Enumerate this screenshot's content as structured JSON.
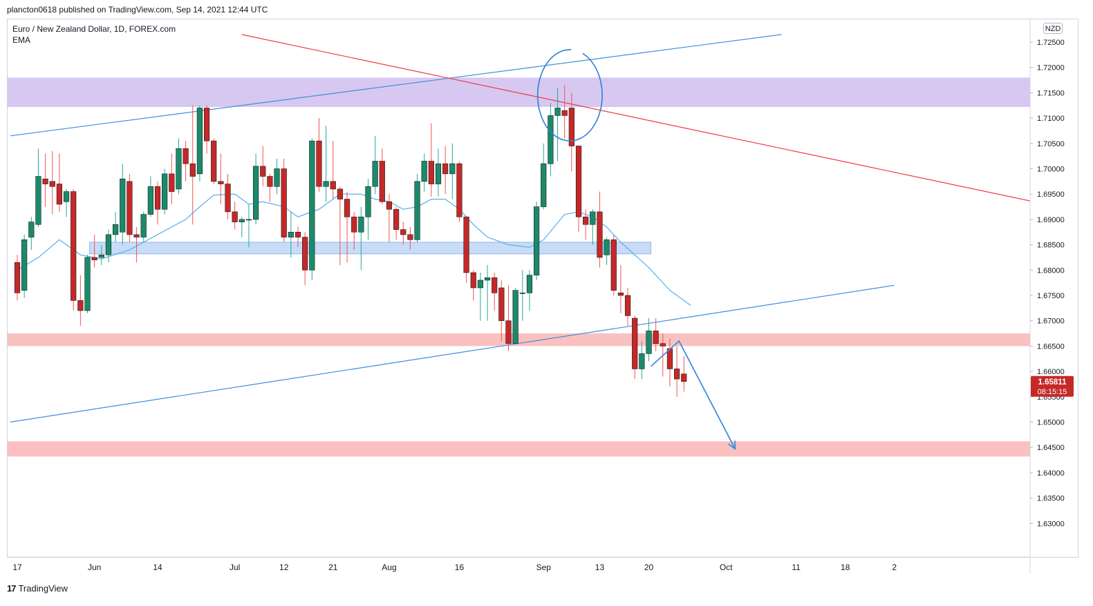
{
  "publisher_line": "plancton0618 published on TradingView.com, Sep 14, 2021 12:44 UTC",
  "legend": {
    "symbol": "Euro / New Zealand Dollar, 1D, FOREX.com",
    "indicator": "EMA"
  },
  "currency_button": "NZD",
  "brand": {
    "logo": "17",
    "name": "TradingView"
  },
  "price_tag": {
    "price": "1.65811",
    "countdown": "08:15:15"
  },
  "colors": {
    "up": "#26a69a",
    "down": "#ef5350",
    "up_body": "#1b8a6b",
    "down_body": "#c62828",
    "ema": "#4aa8e8",
    "trend_blue": "#3e8de0",
    "trend_red": "#f23645",
    "zone_purple": "#d6c8f0",
    "zone_blue": "#c8dcf8",
    "zone_pink": "#fbc0c0"
  },
  "chart_data": {
    "type": "candlestick",
    "y_axis": {
      "range": [
        1.6235,
        1.7295
      ],
      "ticks": [
        "1.72500",
        "1.72000",
        "1.71500",
        "1.71000",
        "1.70500",
        "1.70000",
        "1.69500",
        "1.69000",
        "1.68500",
        "1.68000",
        "1.67500",
        "1.67000",
        "1.66500",
        "1.66000",
        "1.65500",
        "1.65000",
        "1.64500",
        "1.64000",
        "1.63500",
        "1.63000"
      ]
    },
    "x_axis": {
      "ticks": [
        {
          "label": "17",
          "bar": 0
        },
        {
          "label": "Jun",
          "bar": 11
        },
        {
          "label": "14",
          "bar": 20
        },
        {
          "label": "Jul",
          "bar": 31
        },
        {
          "label": "12",
          "bar": 38
        },
        {
          "label": "21",
          "bar": 45
        },
        {
          "label": "Aug",
          "bar": 53
        },
        {
          "label": "16",
          "bar": 63
        },
        {
          "label": "Sep",
          "bar": 75
        },
        {
          "label": "13",
          "bar": 83
        },
        {
          "label": "20",
          "bar": 90
        },
        {
          "label": "Oct",
          "bar": 101
        },
        {
          "label": "11",
          "bar": 111
        },
        {
          "label": "18",
          "bar": 118
        },
        {
          "label": "2",
          "bar": 125
        }
      ]
    },
    "candles": [
      [
        1.6815,
        1.683,
        1.674,
        1.6755
      ],
      [
        1.676,
        1.687,
        1.6745,
        1.686
      ],
      [
        1.6865,
        1.6905,
        1.684,
        1.6895
      ],
      [
        1.689,
        1.704,
        1.6885,
        1.6985
      ],
      [
        1.698,
        1.703,
        1.6925,
        1.697
      ],
      [
        1.6975,
        1.7035,
        1.691,
        1.6965
      ],
      [
        1.697,
        1.703,
        1.6915,
        1.693
      ],
      [
        1.6935,
        1.696,
        1.6905,
        1.6955
      ],
      [
        1.6955,
        1.696,
        1.672,
        1.674
      ],
      [
        1.674,
        1.679,
        1.669,
        1.672
      ],
      [
        1.672,
        1.683,
        1.6715,
        1.6825
      ],
      [
        1.6825,
        1.687,
        1.6805,
        1.682
      ],
      [
        1.6825,
        1.685,
        1.681,
        1.683
      ],
      [
        1.683,
        1.688,
        1.6815,
        1.687
      ],
      [
        1.687,
        1.6915,
        1.6855,
        1.689
      ],
      [
        1.6875,
        1.701,
        1.685,
        1.698
      ],
      [
        1.6975,
        1.699,
        1.6855,
        1.687
      ],
      [
        1.687,
        1.6885,
        1.6815,
        1.6865
      ],
      [
        1.6865,
        1.6915,
        1.6855,
        1.691
      ],
      [
        1.691,
        1.6985,
        1.6905,
        1.6965
      ],
      [
        1.6965,
        1.6975,
        1.689,
        1.692
      ],
      [
        1.692,
        1.7,
        1.691,
        1.699
      ],
      [
        1.699,
        1.703,
        1.693,
        1.6955
      ],
      [
        1.696,
        1.706,
        1.695,
        1.704
      ],
      [
        1.704,
        1.7055,
        1.6975,
        1.701
      ],
      [
        1.701,
        1.7125,
        1.689,
        1.6985
      ],
      [
        1.699,
        1.7125,
        1.6975,
        1.712
      ],
      [
        1.712,
        1.7125,
        1.703,
        1.7055
      ],
      [
        1.7055,
        1.706,
        1.697,
        1.6975
      ],
      [
        1.6975,
        1.703,
        1.693,
        1.697
      ],
      [
        1.697,
        1.699,
        1.69,
        1.6915
      ],
      [
        1.6915,
        1.6935,
        1.688,
        1.6895
      ],
      [
        1.6895,
        1.6905,
        1.6865,
        1.69
      ],
      [
        1.69,
        1.693,
        1.6845,
        1.69
      ],
      [
        1.69,
        1.703,
        1.689,
        1.7005
      ],
      [
        1.7005,
        1.7045,
        1.6965,
        1.6985
      ],
      [
        1.6985,
        1.699,
        1.6935,
        1.6965
      ],
      [
        1.6965,
        1.702,
        1.695,
        1.7
      ],
      [
        1.7,
        1.702,
        1.6855,
        1.6865
      ],
      [
        1.6865,
        1.6915,
        1.6825,
        1.6875
      ],
      [
        1.6875,
        1.6885,
        1.6845,
        1.6865
      ],
      [
        1.6865,
        1.6875,
        1.677,
        1.68
      ],
      [
        1.68,
        1.706,
        1.678,
        1.7055
      ],
      [
        1.7055,
        1.71,
        1.6955,
        1.6965
      ],
      [
        1.6965,
        1.7085,
        1.6935,
        1.6975
      ],
      [
        1.6975,
        1.7055,
        1.694,
        1.696
      ],
      [
        1.696,
        1.6965,
        1.681,
        1.694
      ],
      [
        1.694,
        1.6955,
        1.6815,
        1.6905
      ],
      [
        1.6905,
        1.6915,
        1.684,
        1.6875
      ],
      [
        1.6875,
        1.6925,
        1.68,
        1.6905
      ],
      [
        1.6905,
        1.698,
        1.686,
        1.6965
      ],
      [
        1.6965,
        1.7065,
        1.695,
        1.7015
      ],
      [
        1.7015,
        1.704,
        1.693,
        1.6935
      ],
      [
        1.6935,
        1.695,
        1.6855,
        1.692
      ],
      [
        1.692,
        1.6925,
        1.686,
        1.688
      ],
      [
        1.688,
        1.6895,
        1.685,
        1.687
      ],
      [
        1.687,
        1.6885,
        1.684,
        1.686
      ],
      [
        1.686,
        1.699,
        1.6855,
        1.6975
      ],
      [
        1.6975,
        1.703,
        1.6955,
        1.7015
      ],
      [
        1.7015,
        1.709,
        1.6945,
        1.697
      ],
      [
        1.697,
        1.704,
        1.6945,
        1.701
      ],
      [
        1.701,
        1.7045,
        1.695,
        1.699
      ],
      [
        1.699,
        1.705,
        1.694,
        1.701
      ],
      [
        1.701,
        1.7015,
        1.6895,
        1.6905
      ],
      [
        1.6905,
        1.6905,
        1.6775,
        1.6795
      ],
      [
        1.6795,
        1.68,
        1.674,
        1.6765
      ],
      [
        1.6765,
        1.6795,
        1.67,
        1.678
      ],
      [
        1.678,
        1.681,
        1.67,
        1.6785
      ],
      [
        1.6785,
        1.6795,
        1.672,
        1.6755
      ],
      [
        1.6765,
        1.678,
        1.666,
        1.67
      ],
      [
        1.67,
        1.677,
        1.664,
        1.6655
      ],
      [
        1.6655,
        1.6765,
        1.6655,
        1.676
      ],
      [
        1.6755,
        1.68,
        1.67,
        1.6755
      ],
      [
        1.6755,
        1.68,
        1.672,
        1.679
      ],
      [
        1.679,
        1.6935,
        1.678,
        1.6925
      ],
      [
        1.6925,
        1.705,
        1.692,
        1.701
      ],
      [
        1.701,
        1.713,
        1.6985,
        1.7105
      ],
      [
        1.7105,
        1.716,
        1.7015,
        1.712
      ],
      [
        1.7115,
        1.7165,
        1.706,
        1.7105
      ],
      [
        1.712,
        1.715,
        1.6995,
        1.7045
      ],
      [
        1.7045,
        1.7045,
        1.6875,
        1.6905
      ],
      [
        1.6905,
        1.692,
        1.686,
        1.689
      ],
      [
        1.689,
        1.692,
        1.685,
        1.6915
      ],
      [
        1.6915,
        1.6955,
        1.6805,
        1.6825
      ],
      [
        1.683,
        1.6865,
        1.681,
        1.686
      ],
      [
        1.686,
        1.687,
        1.675,
        1.676
      ],
      [
        1.6755,
        1.681,
        1.6715,
        1.675
      ],
      [
        1.675,
        1.6765,
        1.669,
        1.671
      ],
      [
        1.6705,
        1.671,
        1.6585,
        1.6605
      ],
      [
        1.6605,
        1.666,
        1.6585,
        1.6635
      ],
      [
        1.6635,
        1.6705,
        1.662,
        1.668
      ],
      [
        1.668,
        1.6705,
        1.664,
        1.6655
      ],
      [
        1.6655,
        1.6675,
        1.659,
        1.665
      ],
      [
        1.6645,
        1.6665,
        1.657,
        1.6605
      ],
      [
        1.6605,
        1.665,
        1.655,
        1.6585
      ],
      [
        1.6595,
        1.663,
        1.656,
        1.658
      ]
    ],
    "ema": [
      [
        0,
        1.68
      ],
      [
        3,
        1.6825
      ],
      [
        6,
        1.686
      ],
      [
        9,
        1.683
      ],
      [
        12,
        1.6822
      ],
      [
        16,
        1.684
      ],
      [
        20,
        1.687
      ],
      [
        24,
        1.69
      ],
      [
        26,
        1.6925
      ],
      [
        28,
        1.6948
      ],
      [
        31,
        1.695
      ],
      [
        33,
        1.693
      ],
      [
        35,
        1.6935
      ],
      [
        38,
        1.6925
      ],
      [
        40,
        1.6905
      ],
      [
        43,
        1.692
      ],
      [
        46,
        1.695
      ],
      [
        49,
        1.695
      ],
      [
        51,
        1.694
      ],
      [
        53,
        1.6935
      ],
      [
        55,
        1.692
      ],
      [
        57,
        1.6925
      ],
      [
        59,
        1.694
      ],
      [
        61,
        1.694
      ],
      [
        63,
        1.692
      ],
      [
        65,
        1.689
      ],
      [
        67,
        1.6865
      ],
      [
        70,
        1.685
      ],
      [
        73,
        1.6845
      ],
      [
        75,
        1.686
      ],
      [
        78,
        1.691
      ],
      [
        80,
        1.6915
      ],
      [
        82,
        1.6905
      ],
      [
        84,
        1.6885
      ],
      [
        86,
        1.6855
      ],
      [
        88,
        1.683
      ],
      [
        90,
        1.6805
      ],
      [
        93,
        1.676
      ],
      [
        96,
        1.673
      ]
    ],
    "zones": [
      {
        "from_bar": -1,
        "to_bar": null,
        "top": 1.718,
        "bottom": 1.7122,
        "color": "zone_purple"
      },
      {
        "from_bar": 10.3,
        "to_bar": 90.3,
        "top": 1.6855,
        "bottom": 1.6832,
        "color": "zone_blue"
      },
      {
        "from_bar": -1,
        "to_bar": null,
        "top": 1.6675,
        "bottom": 1.665,
        "color": "zone_pink"
      },
      {
        "from_bar": -1,
        "to_bar": null,
        "top": 1.6462,
        "bottom": 1.6432,
        "color": "zone_pink"
      }
    ],
    "trendlines": [
      {
        "b1": -1,
        "p1": 1.7065,
        "b2": 108.9,
        "p2": 1.7265,
        "color": "trend_blue"
      },
      {
        "b1": -1,
        "p1": 1.65,
        "b2": 125,
        "p2": 1.677,
        "color": "trend_blue"
      },
      {
        "b1": 32,
        "p1": 1.7265,
        "b2": 150,
        "p2": 1.692,
        "color": "trend_red"
      }
    ],
    "arrow": {
      "points": [
        [
          90.3,
          1.661
        ],
        [
          94.3,
          1.666
        ],
        [
          102.3,
          1.6447
        ]
      ],
      "color": "trend_blue"
    },
    "circle": {
      "cx_bar": 78.5,
      "cy": 1.7145,
      "rx_bars": 4.6,
      "ry": 0.009
    }
  }
}
